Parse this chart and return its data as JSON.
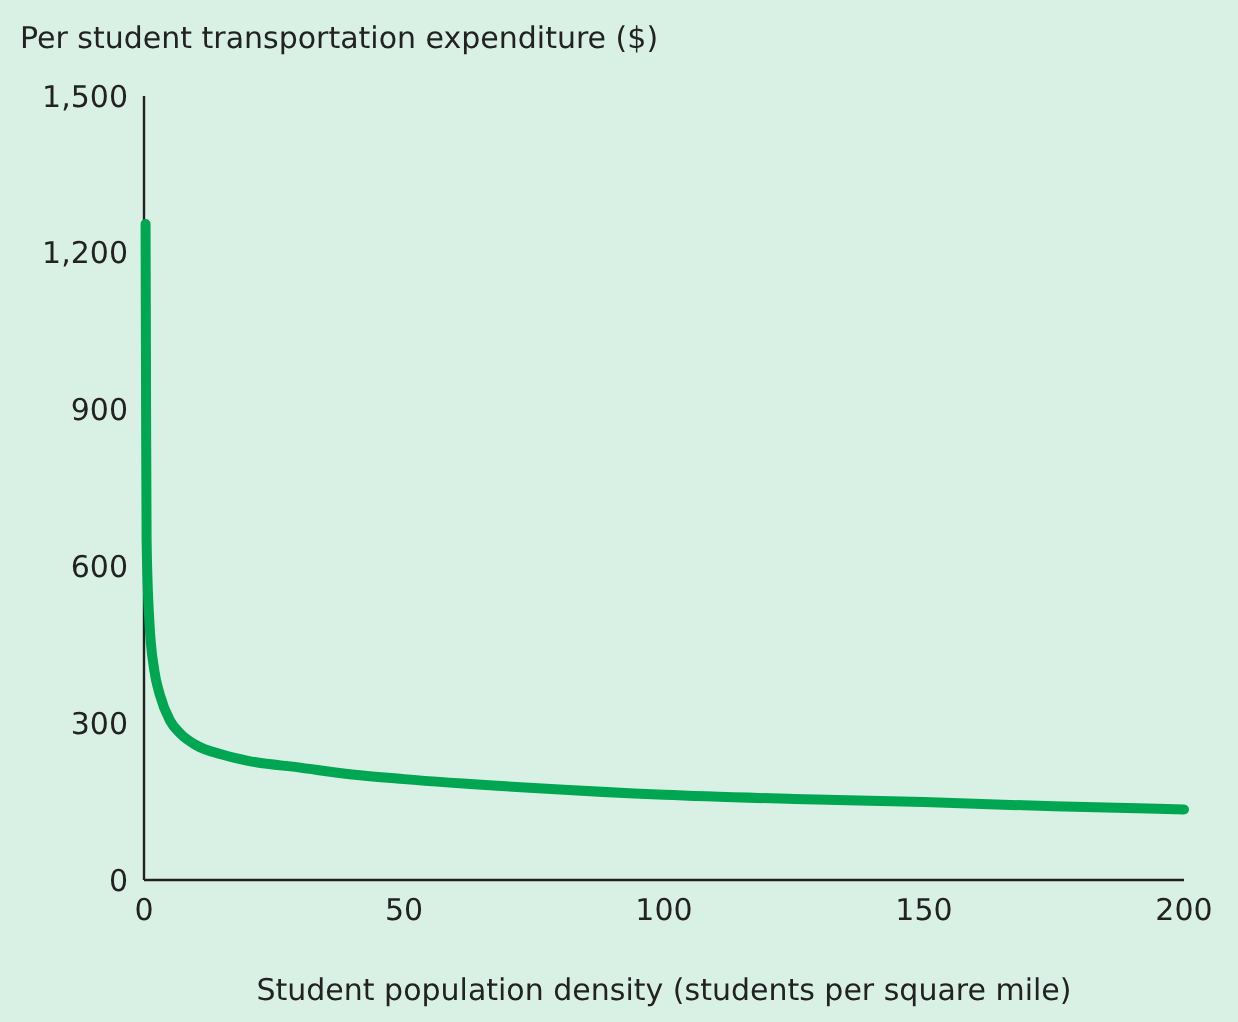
{
  "chart_data": {
    "type": "line",
    "ylabel": "Per student transportation expenditure ($)",
    "xlabel": "Student population density (students per square mile)",
    "x": [
      0.3,
      0.4,
      0.5,
      1,
      2,
      3,
      5,
      7,
      10,
      15,
      20,
      30,
      40,
      50,
      75,
      100,
      125,
      150,
      175,
      200
    ],
    "series": [
      {
        "color": "#00a651",
        "values": [
          1255,
          900,
          650,
          500,
          400,
          356,
          305,
          280,
          258,
          240,
          228,
          215,
          202,
          193,
          176,
          163,
          155,
          149,
          141,
          135
        ]
      }
    ],
    "xlim": [
      0,
      200
    ],
    "xticks": [
      0,
      50,
      100,
      150,
      200
    ],
    "ylim": [
      0,
      1500
    ],
    "yticks": [
      0,
      300,
      600,
      900,
      {
        "value": 1200,
        "label": "1,200"
      },
      {
        "value": 1500,
        "label": "1,500"
      }
    ],
    "grid": false,
    "marker": "none",
    "line_style": "solid"
  }
}
